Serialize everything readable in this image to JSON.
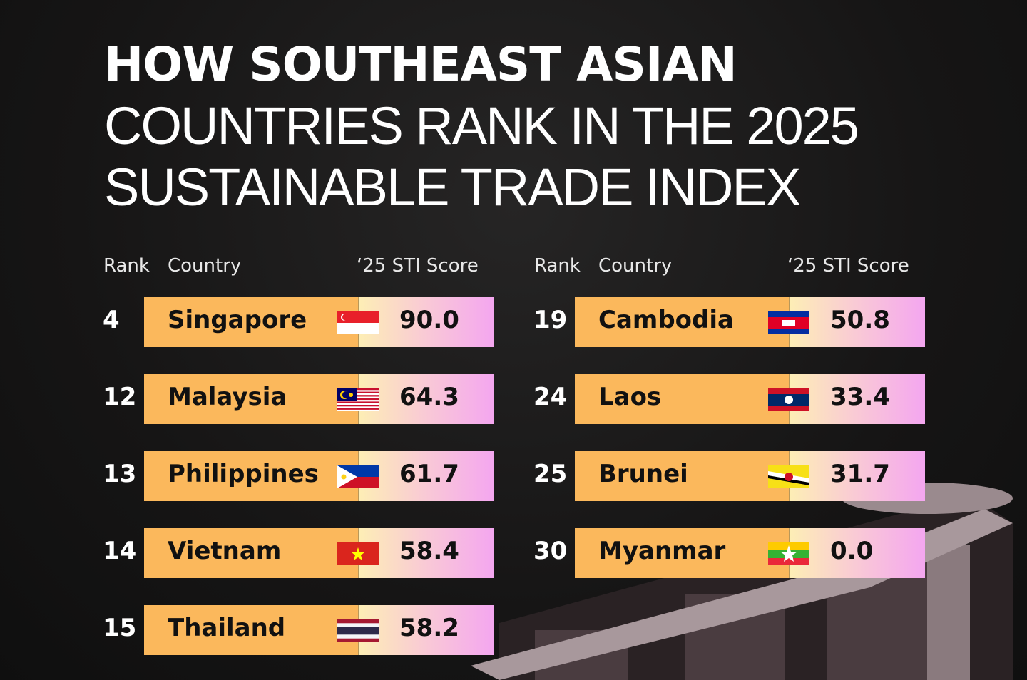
{
  "title": {
    "line1": "HOW SOUTHEAST ASIAN",
    "line2": "COUNTRIES RANK IN THE 2025",
    "line3": "SUSTAINABLE TRADE INDEX"
  },
  "headers": {
    "rank": "Rank",
    "country": "Country",
    "score": "‘25 STI Score"
  },
  "chart_data": {
    "type": "table",
    "title": "How Southeast Asian Countries Rank in the 2025 Sustainable Trade Index",
    "columns": [
      "Rank",
      "Country",
      "'25 STI Score"
    ],
    "rows": [
      {
        "rank": "4",
        "country": "Singapore",
        "score": "90.0",
        "flag": "singapore-flag"
      },
      {
        "rank": "12",
        "country": "Malaysia",
        "score": "64.3",
        "flag": "malaysia-flag"
      },
      {
        "rank": "13",
        "country": "Philippines",
        "score": "61.7",
        "flag": "philippines-flag"
      },
      {
        "rank": "14",
        "country": "Vietnam",
        "score": "58.4",
        "flag": "vietnam-flag"
      },
      {
        "rank": "15",
        "country": "Thailand",
        "score": "58.2",
        "flag": "thailand-flag"
      },
      {
        "rank": "19",
        "country": "Cambodia",
        "score": "50.8",
        "flag": "cambodia-flag"
      },
      {
        "rank": "24",
        "country": "Laos",
        "score": "33.4",
        "flag": "laos-flag"
      },
      {
        "rank": "25",
        "country": "Brunei",
        "score": "31.7",
        "flag": "brunei-flag"
      },
      {
        "rank": "30",
        "country": "Myanmar",
        "score": "0.0",
        "flag": "myanmar-flag"
      }
    ]
  },
  "colors": {
    "bar": "#fbb85c",
    "score_start": "#fdeeb5",
    "score_end": "#f4a6f0",
    "background": "#141313"
  }
}
